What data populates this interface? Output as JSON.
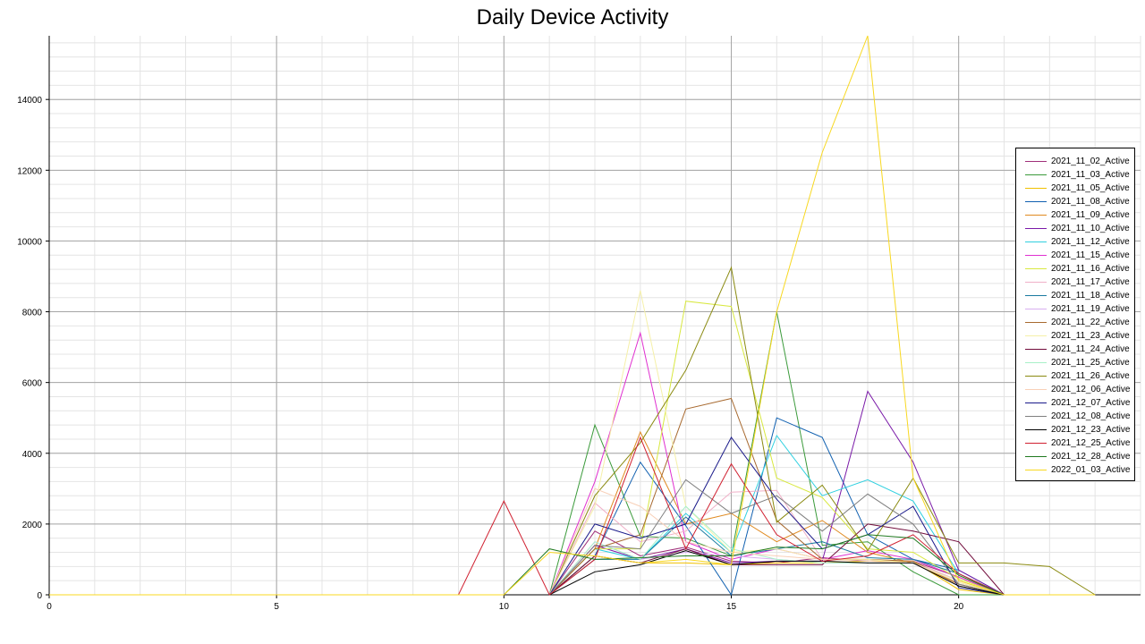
{
  "chart_data": {
    "type": "line",
    "title": "Daily Device Activity",
    "xlabel": "",
    "ylabel": "",
    "xlim": [
      0,
      24
    ],
    "ylim": [
      0,
      15800
    ],
    "x_ticks": [
      "0",
      "5",
      "10",
      "15",
      "20"
    ],
    "y_ticks": [
      "0",
      "2000",
      "4000",
      "6000",
      "8000",
      "10000",
      "12000",
      "14000"
    ],
    "grid": true,
    "legend_position": "right",
    "x": [
      0,
      1,
      2,
      3,
      4,
      5,
      6,
      7,
      8,
      9,
      10,
      11,
      12,
      13,
      14,
      15,
      16,
      17,
      18,
      19,
      20,
      21,
      22,
      23
    ],
    "series": [
      {
        "name": "2021_11_02_Active",
        "color": "#a0307a",
        "values": [
          0,
          0,
          0,
          0,
          0,
          0,
          0,
          0,
          0,
          0,
          0,
          0,
          1800,
          1100,
          1350,
          950,
          900,
          1050,
          950,
          950,
          500,
          0,
          0,
          0
        ]
      },
      {
        "name": "2021_11_03_Active",
        "color": "#3a9a3a",
        "values": [
          0,
          0,
          0,
          0,
          0,
          0,
          0,
          0,
          0,
          0,
          0,
          0,
          4800,
          1650,
          1600,
          1100,
          8000,
          1400,
          1500,
          650,
          0,
          0,
          0,
          0
        ]
      },
      {
        "name": "2021_11_05_Active",
        "color": "#f0c000",
        "values": [
          0,
          0,
          0,
          0,
          0,
          0,
          0,
          0,
          0,
          0,
          0,
          0,
          1100,
          900,
          900,
          850,
          900,
          900,
          950,
          950,
          150,
          0,
          0,
          0
        ]
      },
      {
        "name": "2021_11_08_Active",
        "color": "#1060b0",
        "values": [
          0,
          0,
          0,
          0,
          0,
          0,
          0,
          0,
          0,
          0,
          0,
          0,
          1100,
          3750,
          1950,
          0,
          5000,
          4450,
          1700,
          1000,
          700,
          0,
          0,
          0
        ]
      },
      {
        "name": "2021_11_09_Active",
        "color": "#e08a20",
        "values": [
          0,
          0,
          0,
          0,
          0,
          0,
          0,
          0,
          0,
          0,
          0,
          0,
          1300,
          4600,
          2000,
          2300,
          1500,
          2100,
          1200,
          900,
          300,
          0,
          0,
          0
        ]
      },
      {
        "name": "2021_11_10_Active",
        "color": "#7a1aa8",
        "values": [
          0,
          0,
          0,
          0,
          0,
          0,
          0,
          0,
          0,
          0,
          0,
          0,
          1400,
          1000,
          1300,
          900,
          950,
          950,
          5750,
          3750,
          700,
          0,
          0,
          0
        ]
      },
      {
        "name": "2021_11_12_Active",
        "color": "#30d0e0",
        "values": [
          0,
          0,
          0,
          0,
          0,
          0,
          0,
          0,
          0,
          0,
          0,
          0,
          1300,
          1000,
          2300,
          1200,
          4500,
          2800,
          3250,
          2650,
          600,
          0,
          0,
          0
        ]
      },
      {
        "name": "2021_11_15_Active",
        "color": "#e030d0",
        "values": [
          0,
          0,
          0,
          0,
          0,
          0,
          0,
          0,
          0,
          0,
          0,
          0,
          3200,
          7400,
          1500,
          1000,
          1300,
          1000,
          1250,
          1000,
          500,
          0,
          0,
          0
        ]
      },
      {
        "name": "2021_11_16_Active",
        "color": "#d8e840",
        "values": [
          0,
          0,
          0,
          0,
          0,
          0,
          0,
          0,
          0,
          0,
          0,
          0,
          1300,
          1300,
          8300,
          8150,
          3300,
          2750,
          1300,
          1200,
          450,
          0,
          0,
          0
        ]
      },
      {
        "name": "2021_11_17_Active",
        "color": "#f0b0c8",
        "values": [
          0,
          0,
          0,
          0,
          0,
          0,
          0,
          0,
          0,
          0,
          0,
          0,
          2600,
          1500,
          1800,
          2900,
          2950,
          1000,
          1000,
          950,
          400,
          0,
          0,
          0
        ]
      },
      {
        "name": "2021_11_18_Active",
        "color": "#1a7aa0",
        "values": [
          0,
          0,
          0,
          0,
          0,
          0,
          0,
          0,
          0,
          0,
          0,
          0,
          1000,
          1000,
          2200,
          1100,
          1300,
          1500,
          1050,
          1000,
          600,
          0,
          0,
          0
        ]
      },
      {
        "name": "2021_11_19_Active",
        "color": "#d8b0f0",
        "values": [
          0,
          0,
          0,
          0,
          0,
          0,
          0,
          0,
          0,
          0,
          0,
          0,
          1500,
          1000,
          1200,
          1100,
          1000,
          900,
          900,
          900,
          350,
          0,
          0,
          0
        ]
      },
      {
        "name": "2021_11_22_Active",
        "color": "#a86a30",
        "values": [
          0,
          0,
          0,
          0,
          0,
          0,
          0,
          0,
          0,
          0,
          0,
          0,
          1300,
          1700,
          5250,
          5550,
          2100,
          1000,
          1000,
          950,
          300,
          0,
          0,
          0
        ]
      },
      {
        "name": "2021_11_23_Active",
        "color": "#f5f0a8",
        "values": [
          0,
          0,
          0,
          0,
          0,
          0,
          0,
          0,
          0,
          0,
          0,
          0,
          2500,
          8600,
          2500,
          1200,
          1300,
          1000,
          1000,
          900,
          350,
          0,
          0,
          0
        ]
      },
      {
        "name": "2021_11_24_Active",
        "color": "#700a3a",
        "values": [
          0,
          0,
          0,
          0,
          0,
          0,
          0,
          0,
          0,
          0,
          0,
          0,
          1100,
          900,
          1300,
          850,
          850,
          850,
          2000,
          1800,
          1500,
          0,
          0,
          0
        ]
      },
      {
        "name": "2021_11_25_Active",
        "color": "#a8f0c8",
        "values": [
          0,
          0,
          0,
          0,
          0,
          0,
          0,
          0,
          0,
          0,
          0,
          0,
          1500,
          1000,
          2500,
          1300,
          1000,
          900,
          900,
          900,
          400,
          0,
          0,
          0
        ]
      },
      {
        "name": "2021_11_26_Active",
        "color": "#8a8a10",
        "values": [
          0,
          0,
          0,
          0,
          0,
          0,
          0,
          0,
          0,
          0,
          0,
          0,
          2800,
          4300,
          6350,
          9250,
          2050,
          3100,
          1250,
          3300,
          900,
          900,
          800,
          0
        ]
      },
      {
        "name": "2021_12_06_Active",
        "color": "#f8d0b8",
        "values": [
          0,
          0,
          0,
          0,
          0,
          0,
          0,
          0,
          0,
          0,
          0,
          0,
          3000,
          2500,
          1500,
          1200,
          1100,
          1000,
          950,
          900,
          400,
          0,
          0,
          0
        ]
      },
      {
        "name": "2021_12_07_Active",
        "color": "#1a1a8a",
        "values": [
          0,
          0,
          0,
          0,
          0,
          0,
          0,
          0,
          0,
          0,
          0,
          0,
          2000,
          1600,
          2000,
          4450,
          2700,
          1300,
          1700,
          2500,
          200,
          0,
          0,
          0
        ]
      },
      {
        "name": "2021_12_08_Active",
        "color": "#808080",
        "values": [
          0,
          0,
          0,
          0,
          0,
          0,
          0,
          0,
          0,
          0,
          0,
          0,
          1400,
          1300,
          3250,
          2300,
          2800,
          1800,
          2850,
          2000,
          300,
          0,
          0,
          0
        ]
      },
      {
        "name": "2021_12_23_Active",
        "color": "#000000",
        "values": [
          0,
          0,
          0,
          0,
          0,
          0,
          0,
          0,
          0,
          0,
          0,
          0,
          650,
          850,
          1250,
          850,
          950,
          950,
          900,
          900,
          250,
          0,
          0,
          0
        ]
      },
      {
        "name": "2021_12_25_Active",
        "color": "#d02030",
        "values": [
          0,
          0,
          0,
          0,
          0,
          0,
          0,
          0,
          0,
          0,
          2650,
          0,
          1000,
          4450,
          1300,
          3700,
          1700,
          950,
          1100,
          1700,
          600,
          0,
          0,
          0
        ]
      },
      {
        "name": "2021_12_28_Active",
        "color": "#207a20",
        "values": [
          0,
          0,
          0,
          0,
          0,
          0,
          0,
          0,
          0,
          0,
          0,
          1300,
          1000,
          1050,
          1100,
          1100,
          1350,
          1300,
          1700,
          1600,
          550,
          0,
          0,
          0
        ]
      },
      {
        "name": "2022_01_03_Active",
        "color": "#f8d820",
        "values": [
          0,
          0,
          0,
          0,
          0,
          0,
          0,
          0,
          0,
          0,
          0,
          1200,
          1100,
          900,
          1000,
          850,
          8000,
          12500,
          15800,
          3300,
          400,
          0,
          0,
          0
        ]
      }
    ]
  }
}
